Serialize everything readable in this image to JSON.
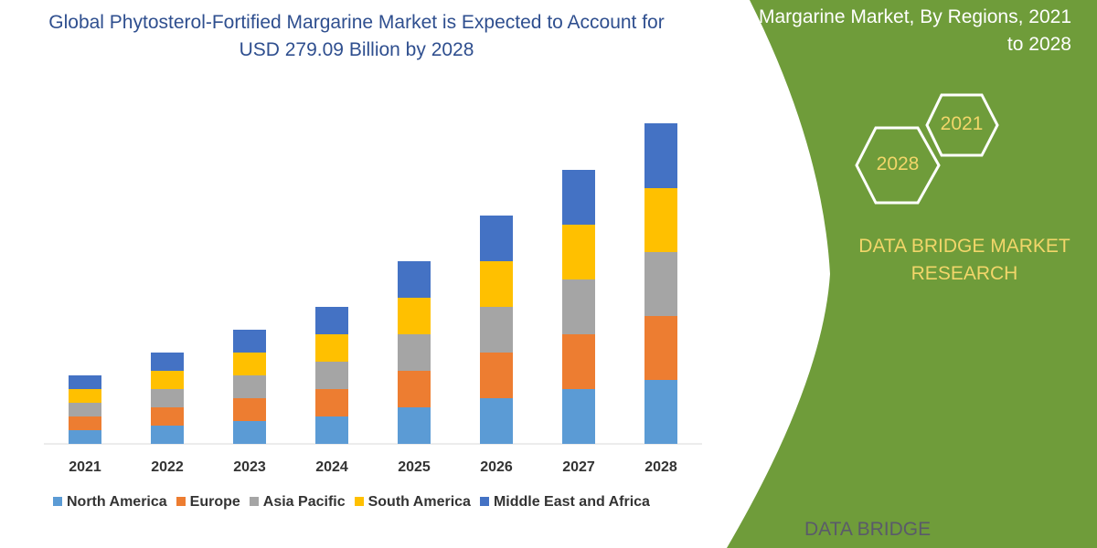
{
  "chart_data": {
    "type": "bar",
    "stacked": true,
    "title": "Global Phytosterol-Fortified Margarine Market is Expected to Account for USD 279.09 Billion by 2028",
    "categories": [
      "2021",
      "2022",
      "2023",
      "2024",
      "2025",
      "2026",
      "2027",
      "2028"
    ],
    "series": [
      {
        "name": "North America",
        "color": "#5b9bd5",
        "values": [
          15,
          20,
          25,
          30,
          40,
          50,
          60,
          70
        ]
      },
      {
        "name": "Europe",
        "color": "#ed7d31",
        "values": [
          15,
          20,
          25,
          30,
          40,
          50,
          60,
          70
        ]
      },
      {
        "name": "Asia Pacific",
        "color": "#a5a5a5",
        "values": [
          15,
          20,
          25,
          30,
          40,
          50,
          60,
          70
        ]
      },
      {
        "name": "South America",
        "color": "#ffc000",
        "values": [
          15,
          20,
          25,
          30,
          40,
          50,
          60,
          70
        ]
      },
      {
        "name": "Middle East and Africa",
        "color": "#4472c4",
        "values": [
          15,
          20,
          25,
          30,
          40,
          50,
          60,
          71
        ]
      }
    ],
    "legend": "bottom",
    "grid": false
  },
  "side": {
    "title": "Margarine Market, By Regions, 2021 to 2028",
    "hex1": "2021",
    "hex2": "2028",
    "brand": "DATA BRIDGE MARKET RESEARCH",
    "logo": "DATA BRIDGE"
  },
  "colors": {
    "panel": "#6f9c3a",
    "accent": "#f2d66a",
    "title": "#2f4f8f"
  }
}
